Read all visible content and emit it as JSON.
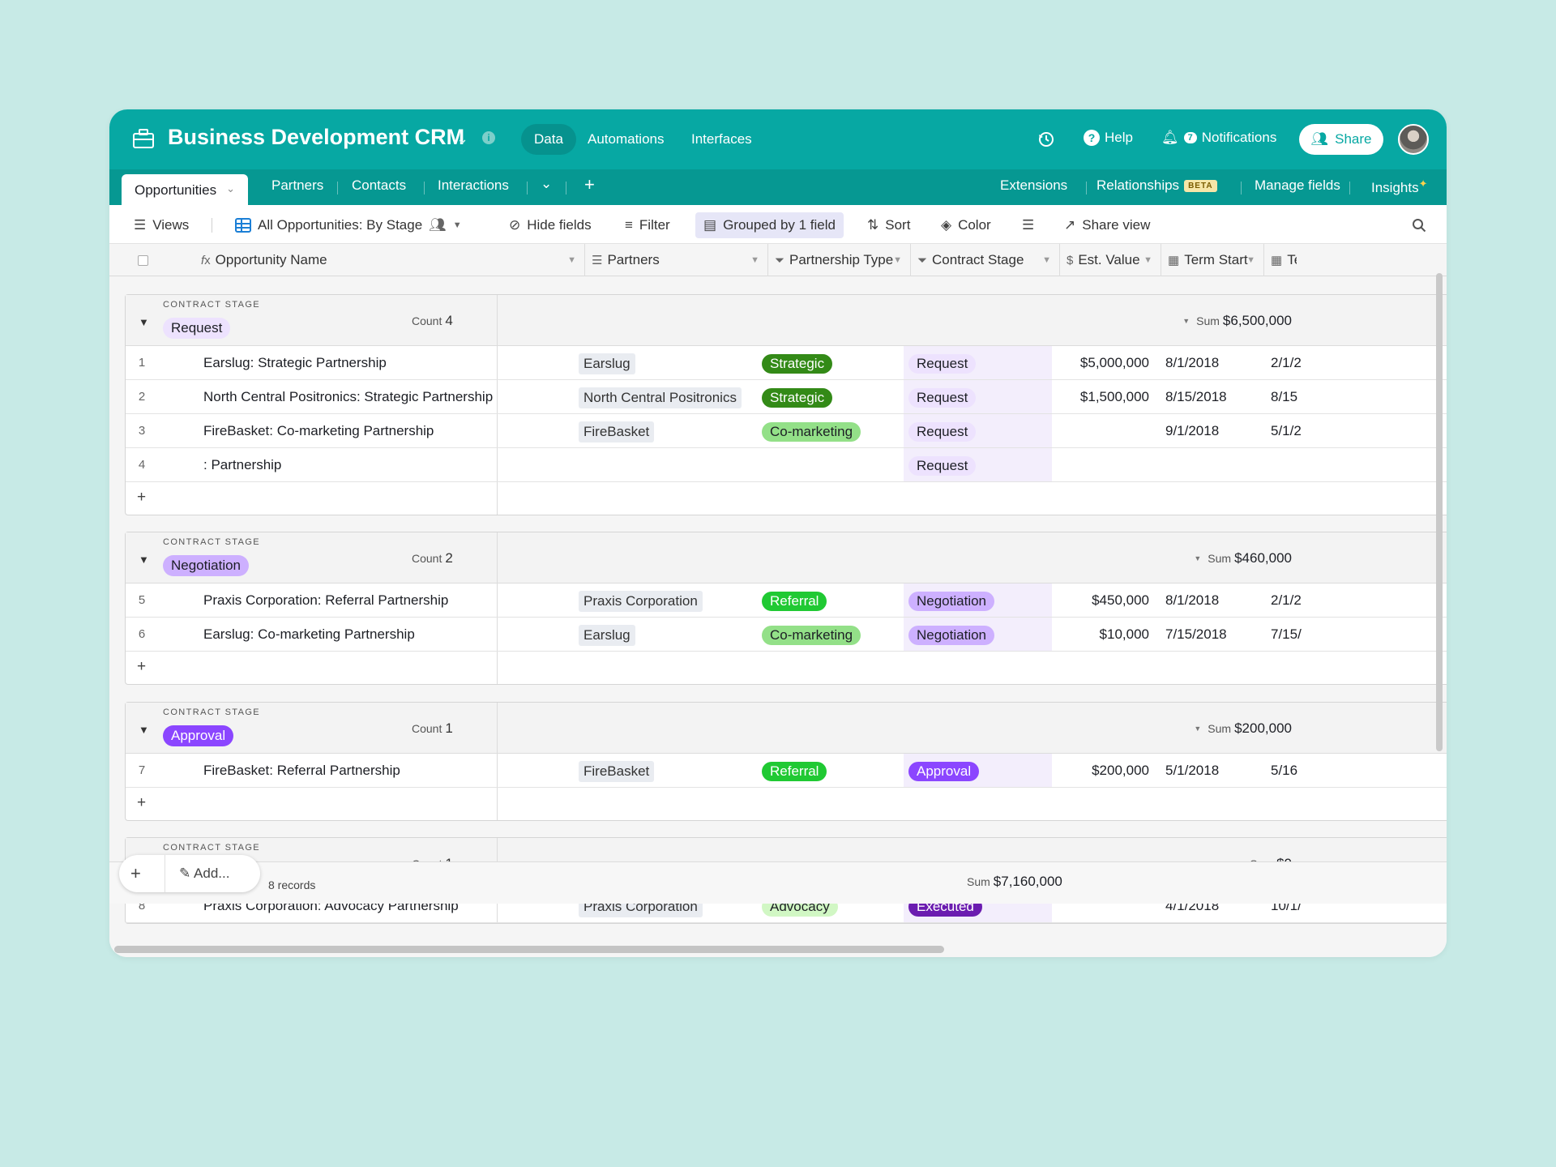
{
  "app": {
    "title": "Business Development CRM",
    "nav_tabs": [
      "Data",
      "Automations",
      "Interfaces"
    ],
    "active_nav": "Data",
    "help_label": "Help",
    "notifications_label": "Notifications",
    "notifications_count": "7",
    "share_label": "Share",
    "brand_color": "#07a8a3"
  },
  "tables": {
    "active": "Opportunities",
    "items": [
      "Partners",
      "Contacts",
      "Interactions"
    ],
    "right": {
      "extensions": "Extensions",
      "relationships": "Relationships",
      "beta": "BETA",
      "manage_fields": "Manage fields",
      "insights": "Insights"
    }
  },
  "toolbar": {
    "views": "Views",
    "view_name": "All Opportunities: By Stage",
    "hide_fields": "Hide fields",
    "filter": "Filter",
    "grouped": "Grouped by 1 field",
    "sort": "Sort",
    "color": "Color",
    "share_view": "Share view"
  },
  "columns": {
    "name": "Opportunity Name",
    "partners": "Partners",
    "type": "Partnership Type",
    "stage": "Contract Stage",
    "value": "Est. Value",
    "term_start": "Term Start",
    "term_end": "Te"
  },
  "group_label": "CONTRACT STAGE",
  "count_label": "Count",
  "sum_label": "Sum",
  "groups": [
    {
      "stage": "Request",
      "count": "4",
      "sum": "$6,500,000",
      "rows": [
        {
          "num": "1",
          "name": "Earslug: Strategic Partnership",
          "partner": "Earslug",
          "type": "Strategic",
          "stage": "Request",
          "value": "$5,000,000",
          "start": "8/1/2018",
          "end": "2/1/2"
        },
        {
          "num": "2",
          "name": "North Central Positronics: Strategic Partnership",
          "partner": "North Central Positronics",
          "type": "Strategic",
          "stage": "Request",
          "value": "$1,500,000",
          "start": "8/15/2018",
          "end": "8/15"
        },
        {
          "num": "3",
          "name": "FireBasket: Co-marketing Partnership",
          "partner": "FireBasket",
          "type": "Co-marketing",
          "stage": "Request",
          "value": "",
          "start": "9/1/2018",
          "end": "5/1/2"
        },
        {
          "num": "4",
          "name": ": Partnership",
          "partner": "",
          "type": "",
          "stage": "Request",
          "value": "",
          "start": "",
          "end": ""
        }
      ]
    },
    {
      "stage": "Negotiation",
      "count": "2",
      "sum": "$460,000",
      "rows": [
        {
          "num": "5",
          "name": "Praxis Corporation: Referral Partnership",
          "partner": "Praxis Corporation",
          "type": "Referral",
          "stage": "Negotiation",
          "value": "$450,000",
          "start": "8/1/2018",
          "end": "2/1/2"
        },
        {
          "num": "6",
          "name": "Earslug: Co-marketing Partnership",
          "partner": "Earslug",
          "type": "Co-marketing",
          "stage": "Negotiation",
          "value": "$10,000",
          "start": "7/15/2018",
          "end": "7/15/"
        }
      ]
    },
    {
      "stage": "Approval",
      "count": "1",
      "sum": "$200,000",
      "rows": [
        {
          "num": "7",
          "name": "FireBasket: Referral Partnership",
          "partner": "FireBasket",
          "type": "Referral",
          "stage": "Approval",
          "value": "$200,000",
          "start": "5/1/2018",
          "end": "5/16"
        }
      ]
    },
    {
      "stage": "Executed",
      "count": "1",
      "sum": "$0",
      "rows": [
        {
          "num": "8",
          "name": "Praxis Corporation: Advocacy Partnership",
          "partner": "Praxis Corporation",
          "type": "Advocacy",
          "stage": "Executed",
          "value": "",
          "start": "4/1/2018",
          "end": "10/1/"
        }
      ]
    }
  ],
  "footer": {
    "add_label": "Add...",
    "records": "8 records",
    "total": "$7,160,000"
  },
  "colors": {
    "Strategic": {
      "bg": "#338a17",
      "fg": "#ffffff"
    },
    "Co-marketing": {
      "bg": "#93e088",
      "fg": "#1d1f25"
    },
    "Referral": {
      "bg": "#20c933",
      "fg": "#ffffff"
    },
    "Advocacy": {
      "bg": "#d1f7c4",
      "fg": "#1d1f25"
    },
    "Request": {
      "bg": "#ede2fe",
      "fg": "#1d1f25"
    },
    "Negotiation": {
      "bg": "#cdb0ff",
      "fg": "#1d1f25"
    },
    "Approval": {
      "bg": "#8b46ff",
      "fg": "#ffffff"
    },
    "Executed": {
      "bg": "#6b1cb0",
      "fg": "#ffffff"
    }
  }
}
